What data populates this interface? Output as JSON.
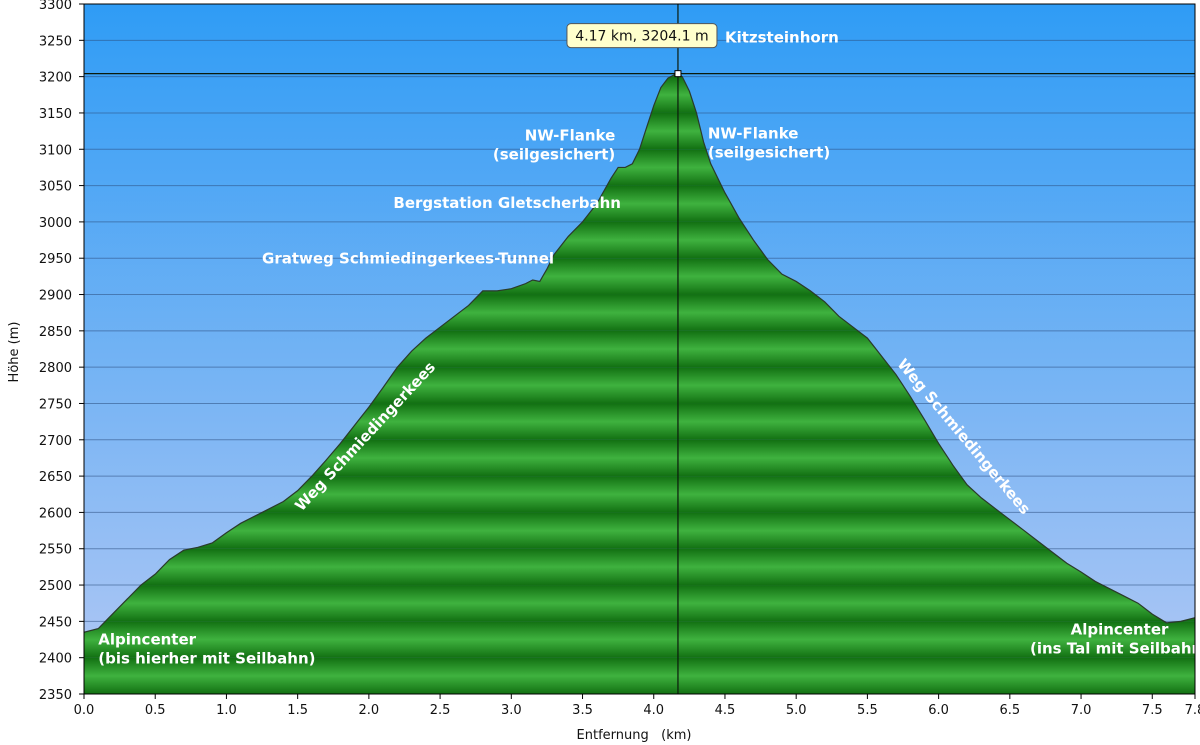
{
  "chart_data": {
    "type": "area",
    "xlabel": "Entfernung   (km)",
    "ylabel": "Höhe (m)",
    "xlim": [
      0,
      7.8
    ],
    "ylim": [
      2350,
      3300
    ],
    "x_ticks": [
      "0.0",
      "0.5",
      "1.0",
      "1.5",
      "2.0",
      "2.5",
      "3.0",
      "3.5",
      "4.0",
      "4.5",
      "5.0",
      "5.5",
      "6.0",
      "6.5",
      "7.0",
      "7.5",
      "7.8"
    ],
    "x_tick_values": [
      0,
      0.5,
      1,
      1.5,
      2,
      2.5,
      3,
      3.5,
      4,
      4.5,
      5,
      5.5,
      6,
      6.5,
      7,
      7.5,
      7.8
    ],
    "y_ticks": [
      2350,
      2400,
      2450,
      2500,
      2550,
      2600,
      2650,
      2700,
      2750,
      2800,
      2850,
      2900,
      2950,
      3000,
      3050,
      3100,
      3150,
      3200,
      3250,
      3300
    ],
    "grid": true,
    "series": [
      {
        "x": [
          0,
          0.1,
          0.2,
          0.3,
          0.4,
          0.5,
          0.6,
          0.7,
          0.8,
          0.9,
          1.0,
          1.1,
          1.2,
          1.3,
          1.4,
          1.5,
          1.6,
          1.7,
          1.8,
          1.9,
          2.0,
          2.1,
          2.2,
          2.3,
          2.4,
          2.5,
          2.6,
          2.7,
          2.8,
          2.9,
          3.0,
          3.1,
          3.15,
          3.2,
          3.25,
          3.3,
          3.4,
          3.5,
          3.6,
          3.7,
          3.75,
          3.8,
          3.85,
          3.9,
          3.95,
          4.0,
          4.05,
          4.1,
          4.15,
          4.17,
          4.2,
          4.25,
          4.3,
          4.35,
          4.4,
          4.45,
          4.5,
          4.6,
          4.7,
          4.8,
          4.9,
          5.0,
          5.1,
          5.2,
          5.3,
          5.4,
          5.5,
          5.6,
          5.7,
          5.8,
          5.9,
          6.0,
          6.1,
          6.2,
          6.3,
          6.4,
          6.5,
          6.6,
          6.7,
          6.8,
          6.9,
          7.0,
          7.1,
          7.2,
          7.3,
          7.4,
          7.5,
          7.6,
          7.7,
          7.8
        ],
        "y": [
          2435,
          2440,
          2460,
          2480,
          2500,
          2515,
          2535,
          2548,
          2552,
          2558,
          2572,
          2585,
          2595,
          2605,
          2615,
          2630,
          2650,
          2672,
          2695,
          2720,
          2745,
          2772,
          2800,
          2822,
          2840,
          2855,
          2870,
          2885,
          2905,
          2905,
          2908,
          2915,
          2920,
          2918,
          2935,
          2955,
          2980,
          3000,
          3025,
          3060,
          3075,
          3075,
          3080,
          3100,
          3130,
          3160,
          3185,
          3198,
          3203,
          3204,
          3200,
          3180,
          3150,
          3110,
          3080,
          3060,
          3040,
          3005,
          2975,
          2948,
          2928,
          2918,
          2905,
          2890,
          2870,
          2855,
          2840,
          2815,
          2790,
          2760,
          2728,
          2695,
          2665,
          2638,
          2620,
          2605,
          2590,
          2575,
          2560,
          2545,
          2530,
          2518,
          2505,
          2495,
          2485,
          2475,
          2460,
          2448,
          2450,
          2455
        ]
      }
    ],
    "crosshair": {
      "x": 4.17,
      "y": 3204.1,
      "label": "4.17 km, 3204.1 m"
    },
    "annotations": [
      {
        "lines": [
          "Kitzsteinhorn"
        ],
        "x": 4.5,
        "y": 3247,
        "anchor": "start",
        "rotate": 0
      },
      {
        "lines": [
          "NW-Flanke",
          "(seilgesichert)"
        ],
        "x": 3.73,
        "y": 3112,
        "anchor": "end",
        "rotate": 0
      },
      {
        "lines": [
          "NW-Flanke",
          " (seilgesichert)"
        ],
        "x": 4.38,
        "y": 3115,
        "anchor": "start",
        "rotate": 0
      },
      {
        "lines": [
          "Bergstation Gletscherbahn"
        ],
        "x": 3.77,
        "y": 3019,
        "anchor": "end",
        "rotate": 0
      },
      {
        "lines": [
          "Gratweg Schmiedingerkees-Tunnel"
        ],
        "x": 3.3,
        "y": 2943,
        "anchor": "end",
        "rotate": 0
      },
      {
        "lines": [
          "Weg Schmiedingerkees"
        ],
        "x": 2.0,
        "y": 2700,
        "anchor": "middle",
        "rotate": -47
      },
      {
        "lines": [
          "Weg Schmiedingerkees"
        ],
        "x": 6.15,
        "y": 2700,
        "anchor": "middle",
        "rotate": 50
      },
      {
        "lines": [
          "Alpincenter",
          "(bis hierher mit Seilbahn)"
        ],
        "x": 0.1,
        "y": 2418,
        "anchor": "start",
        "rotate": 0
      },
      {
        "lines": [
          "Alpincenter",
          "(ins Tal mit Seilbahn)"
        ],
        "x": 7.27,
        "y": 2432,
        "anchor": "middle",
        "rotate": 0
      }
    ]
  },
  "colors": {
    "sky_top": "#2f9cf5",
    "sky_bottom": "#b2c8f4",
    "terrain_light": "#3fb23f",
    "terrain_dark": "#127012",
    "outline": "#2a3a2a",
    "tooltip_bg": "#ffffcc"
  }
}
